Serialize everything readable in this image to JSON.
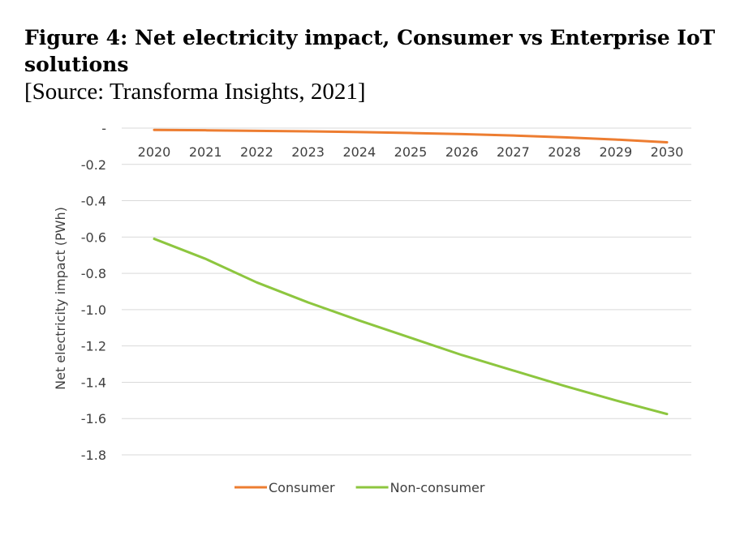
{
  "figure": {
    "title": "Figure 4: Net electricity impact, Consumer vs Enterprise IoT solutions",
    "source": "[Source: Transforma Insights, 2021]"
  },
  "chart_data": {
    "type": "line",
    "title": "Figure 4: Net electricity impact, Consumer vs Enterprise IoT solutions",
    "xlabel": "",
    "ylabel": "Net electricity impact (PWh)",
    "x": [
      "2020",
      "2021",
      "2022",
      "2023",
      "2024",
      "2025",
      "2026",
      "2027",
      "2028",
      "2029",
      "2030"
    ],
    "ylim": [
      -1.8,
      0
    ],
    "yticks": [
      0,
      -0.2,
      -0.4,
      -0.6,
      -0.8,
      -1.0,
      -1.2,
      -1.4,
      -1.6,
      -1.8
    ],
    "ytick_labels": [
      "-",
      "-0.2",
      "-0.4",
      "-0.6",
      "-0.8",
      "-1.0",
      "-1.2",
      "-1.4",
      "-1.6",
      "-1.8"
    ],
    "grid": true,
    "legend_position": "bottom",
    "series": [
      {
        "name": "Consumer",
        "color": "#ED7D31",
        "values": [
          -0.01,
          -0.012,
          -0.015,
          -0.018,
          -0.022,
          -0.027,
          -0.033,
          -0.041,
          -0.051,
          -0.063,
          -0.078
        ]
      },
      {
        "name": "Non-consumer",
        "color": "#8DC63F",
        "values": [
          -0.61,
          -0.72,
          -0.85,
          -0.96,
          -1.06,
          -1.155,
          -1.25,
          -1.335,
          -1.42,
          -1.5,
          -1.575
        ]
      }
    ]
  }
}
